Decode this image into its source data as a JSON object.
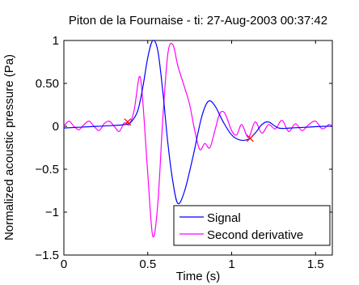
{
  "chart_data": {
    "type": "line",
    "title": "Piton de la Fournaise - ti: 27-Aug-2003 00:37:42",
    "xlabel": "Time (s)",
    "ylabel": "Normalized acoustic pressure (Pa)",
    "xlim": [
      0,
      1.6
    ],
    "ylim": [
      -1.5,
      1
    ],
    "xticks": [
      {
        "value": 0,
        "label": "0"
      },
      {
        "value": 0.5,
        "label": "0.5"
      },
      {
        "value": 1,
        "label": "1"
      },
      {
        "value": 1.5,
        "label": "1.5"
      }
    ],
    "yticks": [
      {
        "value": 1,
        "label": "1"
      },
      {
        "value": 0.5,
        "label": "0.50"
      },
      {
        "value": 0,
        "label": "0"
      },
      {
        "value": -0.5,
        "label": "−0.5"
      },
      {
        "value": -1,
        "label": "−1"
      },
      {
        "value": -1.5,
        "label": "−1.5"
      }
    ],
    "grid": false,
    "legend_position": "bottom-right",
    "series": [
      {
        "name": "Signal",
        "color": "#0000ff",
        "points": [
          [
            0,
            -0.02
          ],
          [
            0.1,
            -0.01
          ],
          [
            0.2,
            0.0
          ],
          [
            0.3,
            0.01
          ],
          [
            0.36,
            0.02
          ],
          [
            0.4,
            0.05
          ],
          [
            0.44,
            0.18
          ],
          [
            0.47,
            0.45
          ],
          [
            0.5,
            0.8
          ],
          [
            0.53,
            1.0
          ],
          [
            0.56,
            0.88
          ],
          [
            0.59,
            0.4
          ],
          [
            0.62,
            -0.2
          ],
          [
            0.65,
            -0.65
          ],
          [
            0.68,
            -0.9
          ],
          [
            0.72,
            -0.75
          ],
          [
            0.77,
            -0.35
          ],
          [
            0.82,
            0.1
          ],
          [
            0.86,
            0.29
          ],
          [
            0.9,
            0.24
          ],
          [
            0.95,
            0.05
          ],
          [
            1.0,
            -0.1
          ],
          [
            1.05,
            -0.16
          ],
          [
            1.1,
            -0.15
          ],
          [
            1.14,
            -0.08
          ],
          [
            1.18,
            0.02
          ],
          [
            1.22,
            0.05
          ],
          [
            1.28,
            -0.02
          ],
          [
            1.35,
            -0.02
          ],
          [
            1.45,
            -0.01
          ],
          [
            1.55,
            0.0
          ],
          [
            1.6,
            0.0
          ]
        ]
      },
      {
        "name": "Second derivative",
        "color": "#ff00ff",
        "points": [
          [
            0,
            0.0
          ],
          [
            0.03,
            0.06
          ],
          [
            0.06,
            0.0
          ],
          [
            0.09,
            -0.04
          ],
          [
            0.12,
            0.02
          ],
          [
            0.15,
            0.06
          ],
          [
            0.18,
            0.0
          ],
          [
            0.21,
            -0.05
          ],
          [
            0.24,
            0.03
          ],
          [
            0.27,
            0.06
          ],
          [
            0.3,
            0.0
          ],
          [
            0.33,
            -0.06
          ],
          [
            0.36,
            0.04
          ],
          [
            0.39,
            0.02
          ],
          [
            0.42,
            0.2
          ],
          [
            0.45,
            0.58
          ],
          [
            0.47,
            0.3
          ],
          [
            0.5,
            -0.55
          ],
          [
            0.53,
            -1.28
          ],
          [
            0.56,
            -0.9
          ],
          [
            0.59,
            0.1
          ],
          [
            0.62,
            0.85
          ],
          [
            0.65,
            0.95
          ],
          [
            0.68,
            0.7
          ],
          [
            0.72,
            0.45
          ],
          [
            0.75,
            0.25
          ],
          [
            0.78,
            -0.05
          ],
          [
            0.81,
            -0.27
          ],
          [
            0.84,
            -0.2
          ],
          [
            0.87,
            -0.25
          ],
          [
            0.9,
            -0.05
          ],
          [
            0.93,
            0.15
          ],
          [
            0.96,
            0.15
          ],
          [
            1.0,
            -0.05
          ],
          [
            1.03,
            -0.1
          ],
          [
            1.06,
            0.02
          ],
          [
            1.1,
            -0.13
          ],
          [
            1.14,
            0.05
          ],
          [
            1.18,
            -0.08
          ],
          [
            1.22,
            0.02
          ],
          [
            1.26,
            -0.03
          ],
          [
            1.3,
            0.07
          ],
          [
            1.34,
            -0.06
          ],
          [
            1.38,
            0.03
          ],
          [
            1.42,
            -0.05
          ],
          [
            1.46,
            0.02
          ],
          [
            1.5,
            0.06
          ],
          [
            1.54,
            -0.03
          ],
          [
            1.58,
            0.02
          ],
          [
            1.6,
            0.0
          ]
        ]
      }
    ],
    "markers": [
      {
        "x": 0.38,
        "y": 0.05,
        "symbol": "x",
        "color": "#ff0000"
      },
      {
        "x": 1.11,
        "y": -0.14,
        "symbol": "x",
        "color": "#ff0000"
      }
    ]
  }
}
